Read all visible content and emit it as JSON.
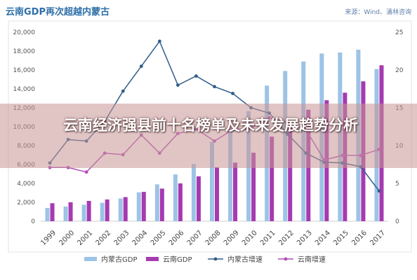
{
  "header": {
    "title": "云南GDP再次超越内蒙古",
    "source": "来源：Wind、涌林咨询"
  },
  "overlay": {
    "headline": "云南经济强县前十名榜单及未来发展趋势分析"
  },
  "colors": {
    "nm_gdp": "#9dc3e6",
    "yn_gdp": "#a63ab0",
    "nm_growth": "#2f5d8a",
    "yn_growth": "#b04eb6"
  },
  "chart_data": {
    "type": "bar",
    "categories": [
      "1999",
      "2000",
      "2001",
      "2002",
      "2003",
      "2004",
      "2005",
      "2006",
      "2007",
      "2008",
      "2009",
      "2010",
      "2011",
      "2012",
      "2013",
      "2014",
      "2015",
      "2016",
      "2017"
    ],
    "series": [
      {
        "name": "内蒙古GDP",
        "kind": "bar",
        "axis": "left",
        "values": [
          1400,
          1550,
          1750,
          1950,
          2400,
          3050,
          3900,
          4950,
          6050,
          8400,
          9750,
          11650,
          14350,
          15900,
          16900,
          17750,
          17850,
          18150,
          16100
        ]
      },
      {
        "name": "云南GDP",
        "kind": "bar",
        "axis": "left",
        "values": [
          1900,
          2000,
          2150,
          2300,
          2550,
          3100,
          3450,
          4000,
          4750,
          5700,
          6200,
          7250,
          8950,
          10300,
          11800,
          12800,
          13600,
          14800,
          16500
        ]
      },
      {
        "name": "内蒙古增速",
        "kind": "line",
        "axis": "right",
        "values": [
          7.7,
          10.8,
          10.6,
          13.2,
          17.2,
          20.5,
          23.8,
          18.0,
          19.2,
          17.8,
          16.9,
          15.0,
          14.3,
          11.5,
          9.0,
          7.8,
          7.7,
          7.2,
          4.0
        ]
      },
      {
        "name": "云南增速",
        "kind": "line",
        "axis": "right",
        "values": [
          7.1,
          7.1,
          6.5,
          9.0,
          8.8,
          11.4,
          9.0,
          11.6,
          12.2,
          10.6,
          12.1,
          12.3,
          13.7,
          13.0,
          12.1,
          8.1,
          8.7,
          8.7,
          9.5
        ]
      }
    ],
    "yleft": {
      "min": 0,
      "max": 20000,
      "ticks": [
        "0",
        "2,000",
        "4,000",
        "6,000",
        "8,000",
        "10,000",
        "12,000",
        "14,000",
        "16,000",
        "18,000",
        "20,000"
      ]
    },
    "yright": {
      "min": 0,
      "max": 25,
      "ticks": [
        "0",
        "5",
        "10",
        "15",
        "20",
        "25"
      ]
    },
    "grid": false,
    "legend": "bottom"
  }
}
